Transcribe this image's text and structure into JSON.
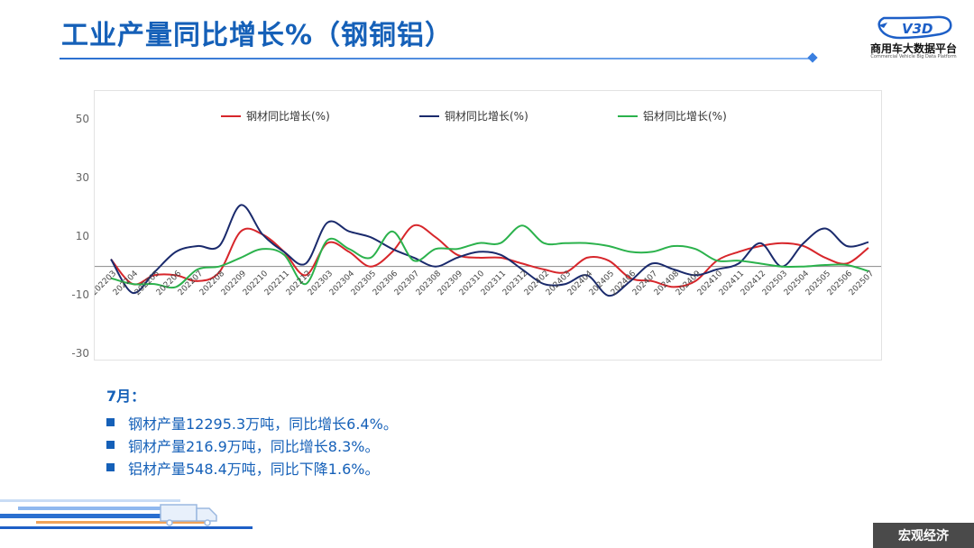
{
  "header": {
    "title": "工业产量同比增长%（钢铜铝）",
    "logo_text": "商用车大数据平台",
    "logo_subtext": "Commercial Vehicle Big Data Platform",
    "logo_badge": "V3D"
  },
  "notes": {
    "month": "7月：",
    "items": [
      "钢材产量12295.3万吨，同比增长6.4%。",
      "铜材产量216.9万吨，同比增长8.3%。",
      "铝材产量548.4万吨，同比下降1.6%。"
    ]
  },
  "footer": {
    "tag": "宏观经济"
  },
  "colors": {
    "accent": "#1560b8",
    "steel": "#d7262b",
    "copper": "#1a2a6c",
    "aluminum": "#2bb24c"
  },
  "chart_data": {
    "type": "line",
    "categories": [
      "202203",
      "202204",
      "202205",
      "202206",
      "202207",
      "202208",
      "202209",
      "202210",
      "202211",
      "202212",
      "202303",
      "202304",
      "202305",
      "202306",
      "202307",
      "202308",
      "202309",
      "202310",
      "202311",
      "202312",
      "202402",
      "202403",
      "202404",
      "202405",
      "202406",
      "202407",
      "202408",
      "202409",
      "202410",
      "202411",
      "202412",
      "202503",
      "202504",
      "202505",
      "202506",
      "202507"
    ],
    "series": [
      {
        "name": "钢材同比增长(%)",
        "color": "#d7262b",
        "values": [
          2.5,
          -6,
          -3,
          -3,
          -5,
          -2,
          12,
          11,
          5,
          -3,
          8,
          5,
          0,
          5,
          14,
          10,
          4,
          3,
          3,
          1,
          -1,
          -2,
          3,
          2,
          -4,
          -5,
          -7,
          -5,
          2,
          5,
          7,
          8,
          7,
          3,
          1,
          6.4
        ]
      },
      {
        "name": "铜材同比增长(%)",
        "color": "#1a2a6c",
        "values": [
          2.5,
          -9,
          -2,
          5,
          7,
          7,
          21,
          11,
          5,
          1,
          15,
          12,
          10,
          6,
          3,
          0,
          3,
          5,
          4,
          -1,
          -6,
          -6,
          -3,
          -10,
          -5,
          1,
          -1,
          -3,
          -1,
          1,
          8,
          0,
          8,
          13,
          7,
          8.3
        ]
      },
      {
        "name": "铝材同比增长(%)",
        "color": "#2bb24c",
        "values": [
          -4,
          -6,
          -6,
          -7,
          -1,
          0,
          3,
          6,
          4,
          -6,
          9,
          6,
          3,
          12,
          2,
          6,
          6,
          8,
          8,
          14,
          8,
          8,
          8,
          7,
          5,
          5,
          7,
          6,
          2,
          2,
          1,
          0,
          0,
          0.5,
          0.5,
          -1.6
        ]
      }
    ],
    "yticks": [
      50,
      30,
      10,
      -10,
      -30
    ],
    "ylim": [
      -30,
      60
    ],
    "legend_position": "top"
  }
}
